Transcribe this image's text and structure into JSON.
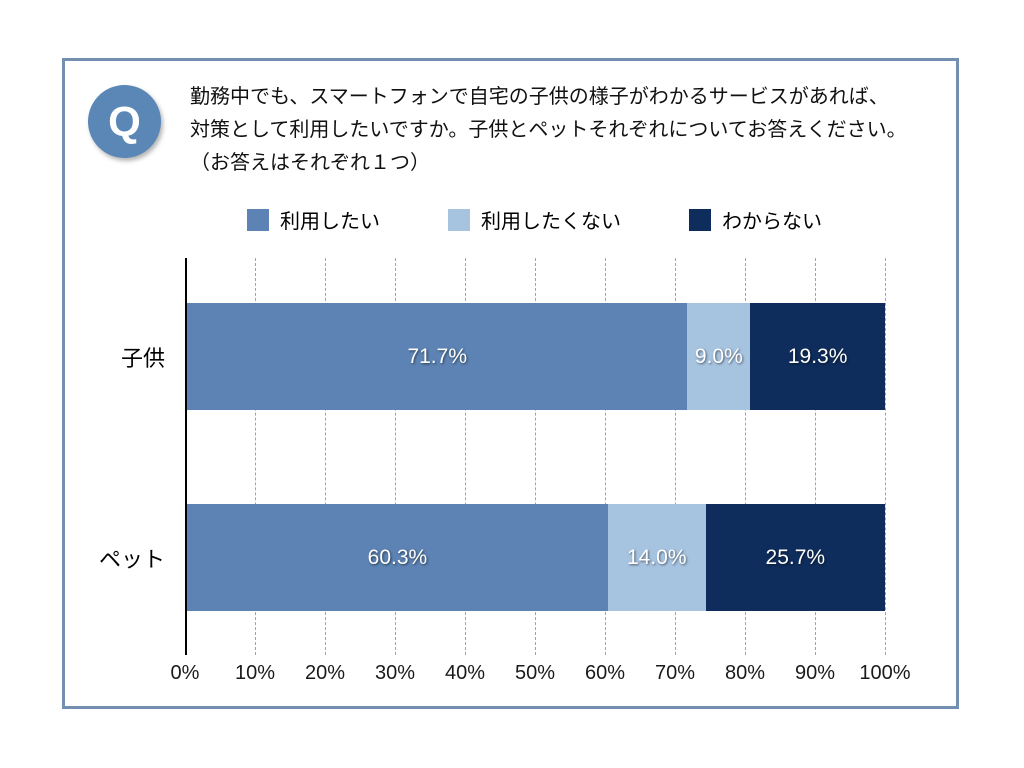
{
  "slide": {
    "q_badge": "Q",
    "question": {
      "line1": "勤務中でも、スマートフォンで自宅の子供の様子がわかるサービスがあれば、",
      "line2": "対策として利用したいですか。子供とペットそれぞれについてお答えください。",
      "line3": "（お答えはそれぞれ１つ）"
    }
  },
  "colors": {
    "q_badge_blue": "#5b87b7",
    "slide_border": "#7490b0",
    "series_want": "#5c83b4",
    "series_not_want": "#a6c3e0",
    "series_unknown": "#0e2d5c",
    "gridline": "#a3a3a3"
  },
  "legend": {
    "items": [
      {
        "label": "利用したい",
        "color": "#5c83b4"
      },
      {
        "label": "利用したくない",
        "color": "#a6c3e0"
      },
      {
        "label": "わからない",
        "color": "#0e2d5c"
      }
    ]
  },
  "chart_data": {
    "type": "bar",
    "subtype": "horizontal-stacked",
    "categories": [
      "子供",
      "ペット"
    ],
    "series": [
      {
        "name": "利用したい",
        "color": "#5c83b4",
        "values": [
          71.7,
          60.3
        ]
      },
      {
        "name": "利用したくない",
        "color": "#a6c3e0",
        "values": [
          9.0,
          14.0
        ]
      },
      {
        "name": "わからない",
        "color": "#0e2d5c",
        "values": [
          19.3,
          25.7
        ]
      }
    ],
    "x_tick_labels": [
      "0%",
      "10%",
      "20%",
      "30%",
      "40%",
      "50%",
      "60%",
      "70%",
      "80%",
      "90%",
      "100%"
    ],
    "xlim": [
      0,
      100
    ],
    "grid": "vertical-dashed",
    "legend_position": "top",
    "value_label_format": "percent-one-decimal"
  },
  "bars": [
    {
      "category": "子供",
      "segments": [
        {
          "label": "71.7%",
          "value": 71.7,
          "color": "#5c83b4"
        },
        {
          "label": "9.0%",
          "value": 9.0,
          "color": "#a6c3e0"
        },
        {
          "label": "19.3%",
          "value": 19.3,
          "color": "#0e2d5c"
        }
      ]
    },
    {
      "category": "ペット",
      "segments": [
        {
          "label": "60.3%",
          "value": 60.3,
          "color": "#5c83b4"
        },
        {
          "label": "14.0%",
          "value": 14.0,
          "color": "#a6c3e0"
        },
        {
          "label": "25.7%",
          "value": 25.7,
          "color": "#0e2d5c"
        }
      ]
    }
  ]
}
